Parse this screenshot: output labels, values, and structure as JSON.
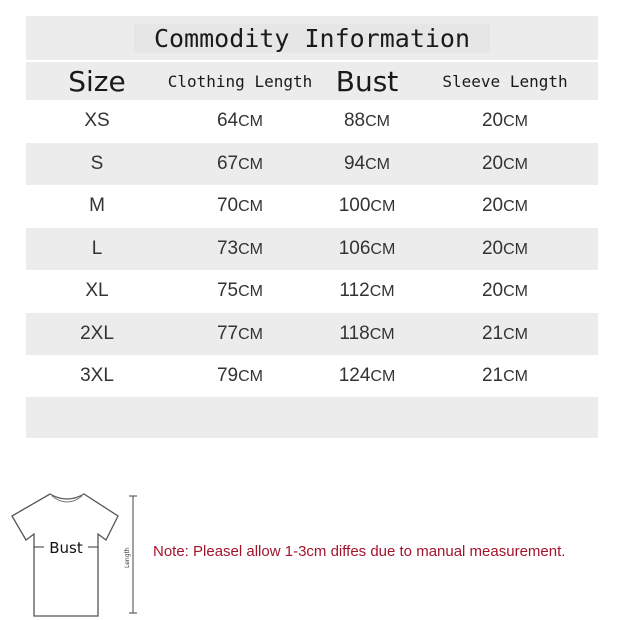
{
  "title": "Commodity Information",
  "headers": [
    "Size",
    "Clothing Length",
    "Bust",
    "Sleeve Length"
  ],
  "rows": [
    [
      "XS",
      "64",
      "88",
      "20"
    ],
    [
      "S",
      "67",
      "94",
      "20"
    ],
    [
      "M",
      "70",
      "100",
      "20"
    ],
    [
      "L",
      "73",
      "106",
      "20"
    ],
    [
      "XL",
      "75",
      "112",
      "20"
    ],
    [
      "2XL",
      "77",
      "118",
      "21"
    ],
    [
      "3XL",
      "79",
      "124",
      "21"
    ]
  ],
  "unit": "CM",
  "diagram": {
    "bust_label": "Bust",
    "length_label": "Length"
  },
  "note": "Note: Pleasel allow 1-3cm diffes due to manual measurement.",
  "colors": {
    "note": "#a3142c",
    "band": "#ececec"
  }
}
